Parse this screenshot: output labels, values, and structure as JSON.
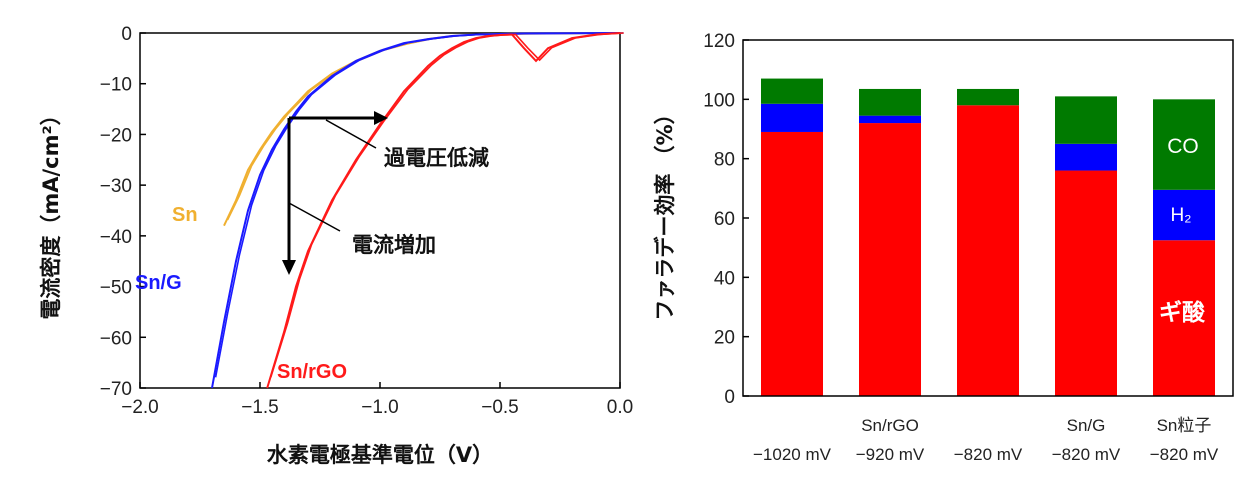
{
  "chart_data": [
    {
      "type": "line",
      "xlabel": "水素電極基準電位（V）",
      "ylabel": "電流密度（mA/cm²）",
      "xlim": [
        -2.0,
        0.0
      ],
      "ylim": [
        -70,
        0
      ],
      "xticks": [
        "−2.0",
        "−1.5",
        "−1.0",
        "−0.5",
        "0.0"
      ],
      "yticks": [
        "0",
        "−10",
        "−20",
        "−30",
        "−40",
        "−50",
        "−60",
        "−70"
      ],
      "series": [
        {
          "name": "Sn",
          "color": "#f0b030",
          "x": [
            -1.65,
            -1.6,
            -1.55,
            -1.5,
            -1.45,
            -1.4,
            -1.35,
            -1.3,
            -1.2,
            -1.1,
            -1.0,
            -0.9,
            -0.8,
            -0.7,
            -0.6,
            -0.5,
            -0.3,
            0.0
          ],
          "y": [
            -38,
            -33,
            -27,
            -23,
            -19.5,
            -16.5,
            -14,
            -11.5,
            -8,
            -5.5,
            -3.5,
            -2.2,
            -1.2,
            -0.6,
            -0.3,
            -0.2,
            -0.1,
            0
          ]
        },
        {
          "name": "Sn/G",
          "color": "#1a1aff",
          "x": [
            -1.7,
            -1.65,
            -1.6,
            -1.55,
            -1.5,
            -1.45,
            -1.4,
            -1.35,
            -1.3,
            -1.2,
            -1.1,
            -1.0,
            -0.9,
            -0.8,
            -0.7,
            -0.6,
            -0.4,
            0.0
          ],
          "y": [
            -70,
            -57,
            -45,
            -35,
            -28,
            -23,
            -19,
            -15.5,
            -12.5,
            -8.5,
            -5.5,
            -3.5,
            -2,
            -1.2,
            -0.6,
            -0.3,
            -0.1,
            0
          ]
        },
        {
          "name": "Sn/rGO",
          "color": "#ff1a1a",
          "x": [
            -1.47,
            -1.4,
            -1.35,
            -1.3,
            -1.2,
            -1.1,
            -1.0,
            -0.9,
            -0.8,
            -0.75,
            -0.7,
            -0.65,
            -0.6,
            -0.55,
            -0.5,
            -0.45,
            -0.4,
            -0.35,
            -0.3,
            -0.2,
            -0.1,
            0.0
          ],
          "y": [
            -70,
            -59,
            -50,
            -43,
            -33,
            -25,
            -18,
            -11.5,
            -6.5,
            -4.5,
            -3,
            -1.8,
            -1,
            -0.6,
            -0.4,
            -0.3,
            -3,
            -5.5,
            -3,
            -1,
            -0.3,
            0
          ]
        }
      ],
      "annotations": [
        "過電圧低減",
        "電流増加"
      ]
    },
    {
      "type": "bar",
      "ylabel": "ファラデー効率 （%）",
      "ylim": [
        0,
        120
      ],
      "yticks": [
        "0",
        "20",
        "40",
        "60",
        "80",
        "100",
        "120"
      ],
      "categories": [
        {
          "line1": "",
          "line2": "−1020 mV"
        },
        {
          "line1": "Sn/rGO",
          "line2": "−920 mV"
        },
        {
          "line1": "",
          "line2": "−820 mV"
        },
        {
          "line1": "Sn/G",
          "line2": "−820 mV"
        },
        {
          "line1": "Sn粒子",
          "line2": "−820 mV"
        }
      ],
      "series": [
        {
          "name": "ギ酸",
          "color": "#ff0000",
          "values": [
            89,
            92,
            98,
            76,
            52.5
          ]
        },
        {
          "name": "H₂",
          "color": "#0000ff",
          "values": [
            9.5,
            2.5,
            0,
            9,
            17
          ]
        },
        {
          "name": "CO",
          "color": "#007a00",
          "values": [
            8.5,
            9,
            5.5,
            16,
            30.5
          ]
        }
      ]
    }
  ]
}
